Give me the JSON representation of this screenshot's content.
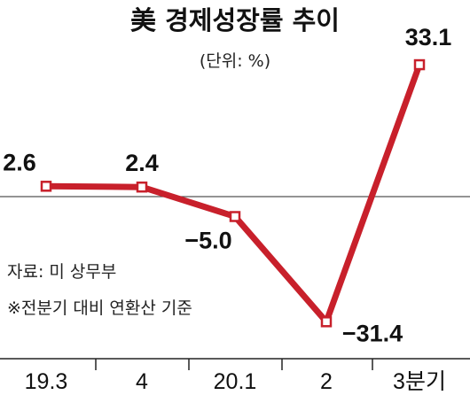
{
  "chart_data": {
    "type": "line",
    "title": "美 경제성장률 추이",
    "subtitle": "(단위: %)",
    "categories": [
      "19.3",
      "4",
      "20.1",
      "2",
      "3분기"
    ],
    "values": [
      2.6,
      2.4,
      -5.0,
      -31.4,
      33.1
    ],
    "data_labels": [
      "2.6",
      "2.4",
      "−5.0",
      "−31.4",
      "33.1"
    ],
    "ylim": [
      -35,
      37
    ],
    "grid": false,
    "line_color": "#c8202b",
    "baseline_color": "#555555",
    "notes": [
      "자료: 미 상무부",
      "※전분기 대비 연환산 기준"
    ]
  }
}
